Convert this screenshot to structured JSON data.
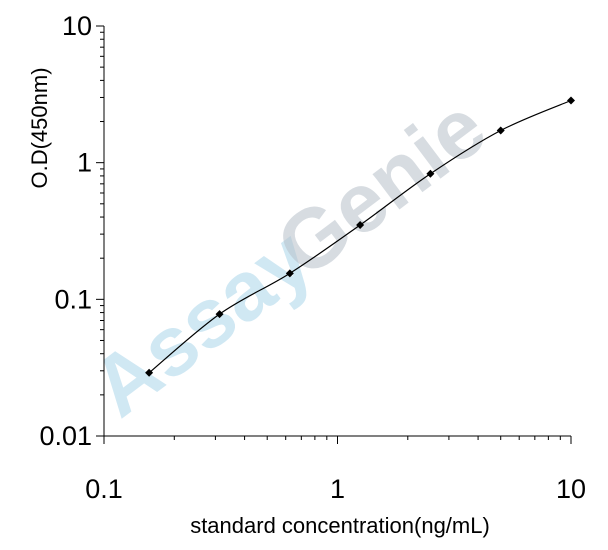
{
  "chart_data": {
    "type": "line",
    "title": "",
    "xlabel": "standard concentration(ng/mL)",
    "ylabel": "O.D(450nm)",
    "x_scale": "log",
    "y_scale": "log",
    "xlim": [
      0.1,
      10
    ],
    "ylim": [
      0.01,
      10
    ],
    "x_ticks": [
      "0.1",
      "1",
      "10"
    ],
    "y_ticks": [
      "10",
      "1",
      "0.1",
      "0.01"
    ],
    "grid": false,
    "legend": "none",
    "series": [
      {
        "x": [
          0.156,
          0.3125,
          0.625,
          1.25,
          2.5,
          5,
          10
        ],
        "y": [
          0.029,
          0.078,
          0.155,
          0.35,
          0.83,
          1.72,
          2.85
        ]
      }
    ],
    "watermark": {
      "part1": "Assay",
      "part2": "Genie"
    },
    "colors": {
      "line": "#000000",
      "marker": "#000000",
      "watermark_blue": "#a9d6ea",
      "watermark_gray": "#b7c0c8"
    }
  }
}
